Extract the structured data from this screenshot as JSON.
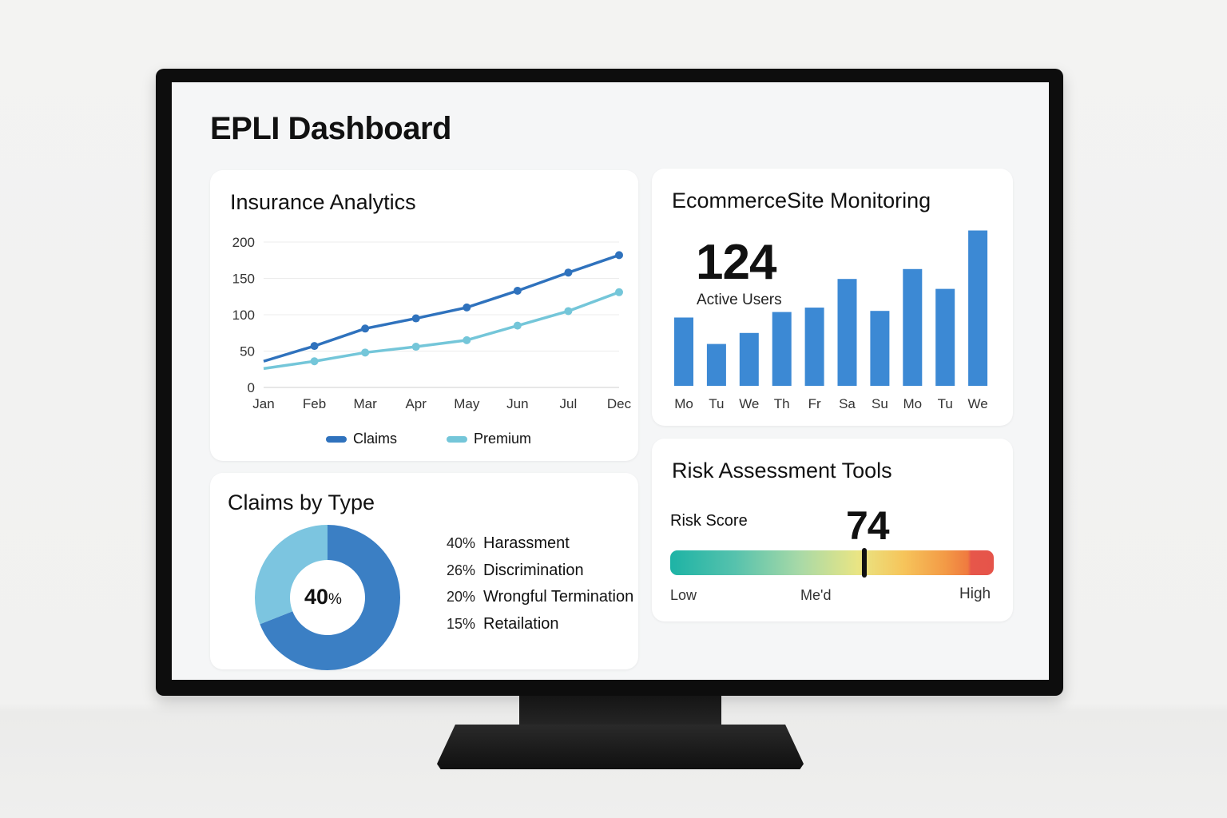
{
  "dashboard": {
    "title": "EPLI Dashboard"
  },
  "insurance": {
    "title": "Insurance Analytics",
    "chart_data": {
      "type": "line",
      "categories": [
        "Jan",
        "Feb",
        "Mar",
        "Apr",
        "May",
        "Jun",
        "Jul",
        "Dec"
      ],
      "y_ticks": [
        "0",
        "50",
        "100",
        "150",
        "200"
      ],
      "ylim": [
        0,
        200
      ],
      "grid": true,
      "legend_position": "bottom",
      "series": [
        {
          "name": "Claims",
          "color": "#2f72bd",
          "values": [
            36,
            57,
            81,
            95,
            110,
            133,
            158,
            182
          ]
        },
        {
          "name": "Premium",
          "color": "#74c6d9",
          "values": [
            26,
            36,
            48,
            56,
            65,
            85,
            105,
            131
          ]
        }
      ]
    }
  },
  "ecommerce": {
    "title": "EcommerceSite Monitoring",
    "active_users_value": "124",
    "active_users_label": "Active Users",
    "chart_data": {
      "type": "bar",
      "categories": [
        "Mo",
        "Tu",
        "We",
        "Th",
        "Fr",
        "Sa",
        "Su",
        "Mo",
        "Tu",
        "We"
      ],
      "values": [
        62,
        38,
        48,
        67,
        71,
        97,
        68,
        106,
        88,
        141
      ],
      "ylim": [
        0,
        145
      ],
      "color": "#3c89d4"
    }
  },
  "risk": {
    "title": "Risk Assessment Tools",
    "score_label": "Risk Score",
    "score_value": "74",
    "needle_fraction": 0.6,
    "low_label": "Low",
    "med_label": "Me'd",
    "high_label": "High"
  },
  "claims_by_type": {
    "title": "Claims by Type",
    "center_value": "40",
    "center_unit": "%",
    "chart_data": {
      "type": "pie",
      "slices": [
        {
          "label": "Harassment",
          "pct_label": "40%",
          "value": 40
        },
        {
          "label": "Discrimination",
          "pct_label": "26%",
          "value": 26
        },
        {
          "label": "Wrongful Termination",
          "pct_label": "20%",
          "value": 20
        },
        {
          "label": "Retailation",
          "pct_label": "15%",
          "value": 15
        }
      ],
      "ring_colors": [
        "#3b7fc4",
        "#7cc5e0"
      ],
      "ring_split_fraction": 0.69
    }
  }
}
